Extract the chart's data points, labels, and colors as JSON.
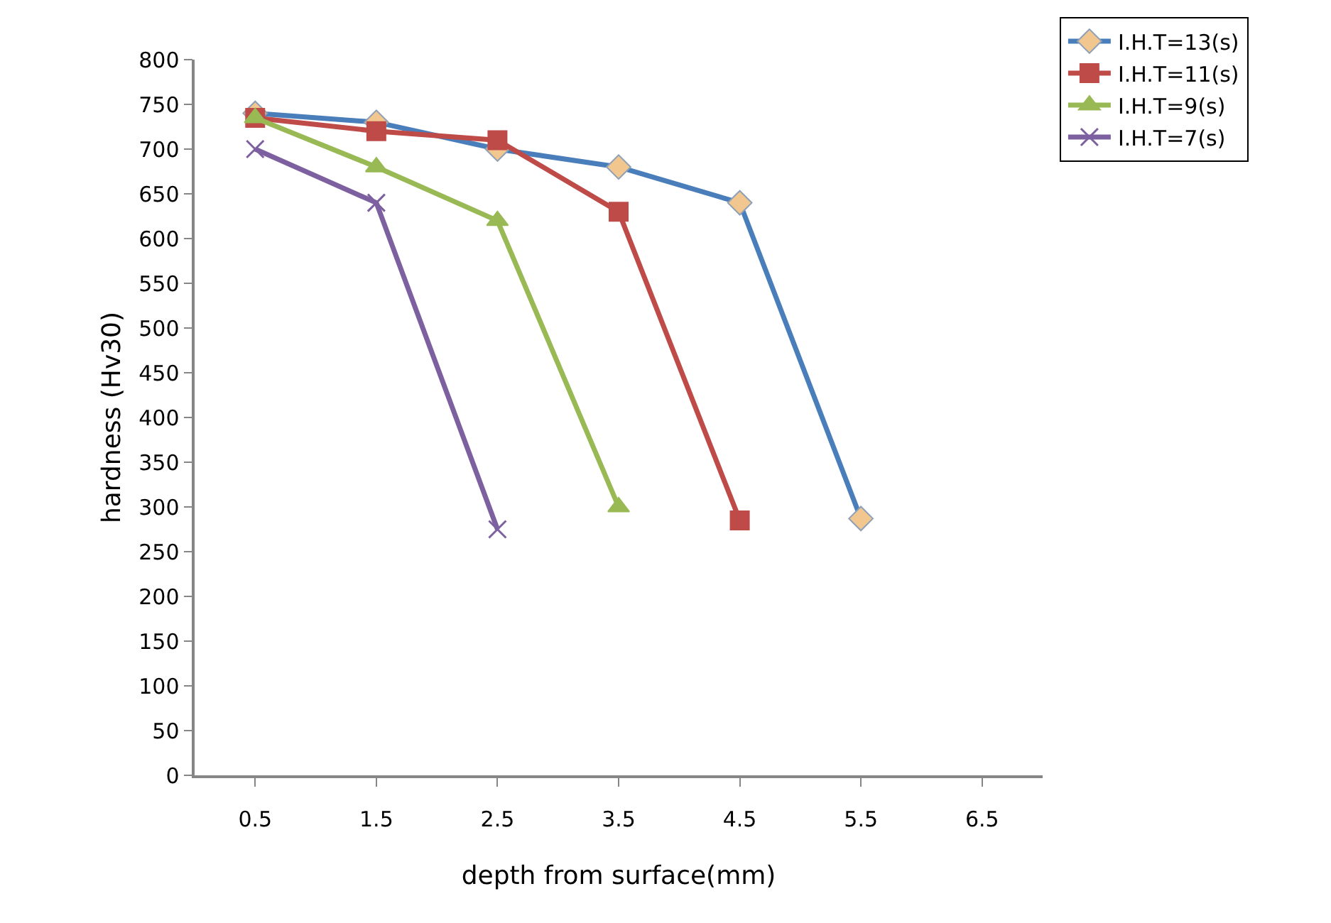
{
  "chart_data": {
    "type": "line",
    "xlabel": "depth from surface(mm)",
    "ylabel": "hardness (Hv30)",
    "xlim": [
      0,
      7
    ],
    "xticks": [
      0.5,
      1.5,
      2.5,
      3.5,
      4.5,
      5.5,
      6.5
    ],
    "ylim": [
      0,
      800
    ],
    "yticks": [
      0,
      50,
      100,
      150,
      200,
      250,
      300,
      350,
      400,
      450,
      500,
      550,
      600,
      650,
      700,
      750,
      800
    ],
    "grid": false,
    "legend": "top right",
    "series": [
      {
        "name": "I.H.T=13(s)",
        "color": "#4a7ebb",
        "marker": "diamond",
        "x": [
          0.5,
          1.5,
          2.5,
          3.5,
          4.5,
          5.5
        ],
        "values": [
          740,
          730,
          700,
          680,
          640,
          287
        ]
      },
      {
        "name": "I.H.T=11(s)",
        "color": "#be4b48",
        "marker": "square",
        "x": [
          0.5,
          1.5,
          2.5,
          3.5,
          4.5
        ],
        "values": [
          735,
          720,
          710,
          630,
          285
        ]
      },
      {
        "name": "I.H.T=9(s)",
        "color": "#98b954",
        "marker": "triangle",
        "x": [
          0.5,
          1.5,
          2.5,
          3.5
        ],
        "values": [
          735,
          680,
          620,
          300
        ]
      },
      {
        "name": "I.H.T=7(s)",
        "color": "#7d60a0",
        "marker": "cross",
        "x": [
          0.5,
          1.5,
          2.5
        ],
        "values": [
          700,
          640,
          275
        ]
      }
    ]
  }
}
